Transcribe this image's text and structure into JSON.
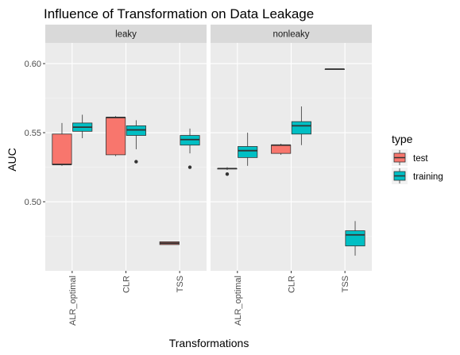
{
  "chart_data": {
    "type": "boxplot",
    "title": "Influence of Transformation on Data Leakage",
    "xlabel": "Transformations",
    "ylabel": "AUC",
    "ylim": [
      0.45,
      0.615
    ],
    "yticks": [
      0.5,
      0.55,
      0.6
    ],
    "ytick_labels": [
      "0.50",
      "0.55",
      "0.60"
    ],
    "categories": [
      "ALR_optimal",
      "CLR",
      "TSS"
    ],
    "facets": [
      "leaky",
      "nonleaky"
    ],
    "grid": true,
    "legend": {
      "title": "type",
      "position": "right",
      "entries": [
        {
          "label": "test",
          "color": "#F8766D"
        },
        {
          "label": "training",
          "color": "#00BFC4"
        }
      ]
    },
    "boxes": [
      {
        "facet": "leaky",
        "category": "ALR_optimal",
        "type": "test",
        "min": 0.526,
        "q1": 0.527,
        "median": 0.527,
        "q3": 0.549,
        "max": 0.557,
        "outliers": []
      },
      {
        "facet": "leaky",
        "category": "ALR_optimal",
        "type": "training",
        "min": 0.546,
        "q1": 0.551,
        "median": 0.554,
        "q3": 0.557,
        "max": 0.563,
        "outliers": []
      },
      {
        "facet": "leaky",
        "category": "CLR",
        "type": "test",
        "min": 0.533,
        "q1": 0.534,
        "median": 0.561,
        "q3": 0.561,
        "max": 0.562,
        "outliers": []
      },
      {
        "facet": "leaky",
        "category": "CLR",
        "type": "training",
        "min": 0.538,
        "q1": 0.548,
        "median": 0.552,
        "q3": 0.555,
        "max": 0.559,
        "outliers": [
          0.529
        ]
      },
      {
        "facet": "leaky",
        "category": "TSS",
        "type": "test",
        "min": 0.469,
        "q1": 0.469,
        "median": 0.47,
        "q3": 0.471,
        "max": 0.471,
        "outliers": []
      },
      {
        "facet": "leaky",
        "category": "TSS",
        "type": "training",
        "min": 0.535,
        "q1": 0.541,
        "median": 0.545,
        "q3": 0.548,
        "max": 0.553,
        "outliers": [
          0.525
        ]
      },
      {
        "facet": "nonleaky",
        "category": "ALR_optimal",
        "type": "test",
        "min": 0.523,
        "q1": 0.524,
        "median": 0.524,
        "q3": 0.524,
        "max": 0.525,
        "outliers": [
          0.52
        ]
      },
      {
        "facet": "nonleaky",
        "category": "ALR_optimal",
        "type": "training",
        "min": 0.526,
        "q1": 0.532,
        "median": 0.537,
        "q3": 0.54,
        "max": 0.55,
        "outliers": []
      },
      {
        "facet": "nonleaky",
        "category": "CLR",
        "type": "test",
        "min": 0.534,
        "q1": 0.535,
        "median": 0.541,
        "q3": 0.541,
        "max": 0.542,
        "outliers": []
      },
      {
        "facet": "nonleaky",
        "category": "CLR",
        "type": "training",
        "min": 0.541,
        "q1": 0.549,
        "median": 0.555,
        "q3": 0.558,
        "max": 0.569,
        "outliers": []
      },
      {
        "facet": "nonleaky",
        "category": "TSS",
        "type": "test",
        "min": 0.596,
        "q1": 0.596,
        "median": 0.596,
        "q3": 0.596,
        "max": 0.596,
        "outliers": []
      },
      {
        "facet": "nonleaky",
        "category": "TSS",
        "type": "training",
        "min": 0.461,
        "q1": 0.468,
        "median": 0.476,
        "q3": 0.479,
        "max": 0.486,
        "outliers": []
      }
    ]
  }
}
